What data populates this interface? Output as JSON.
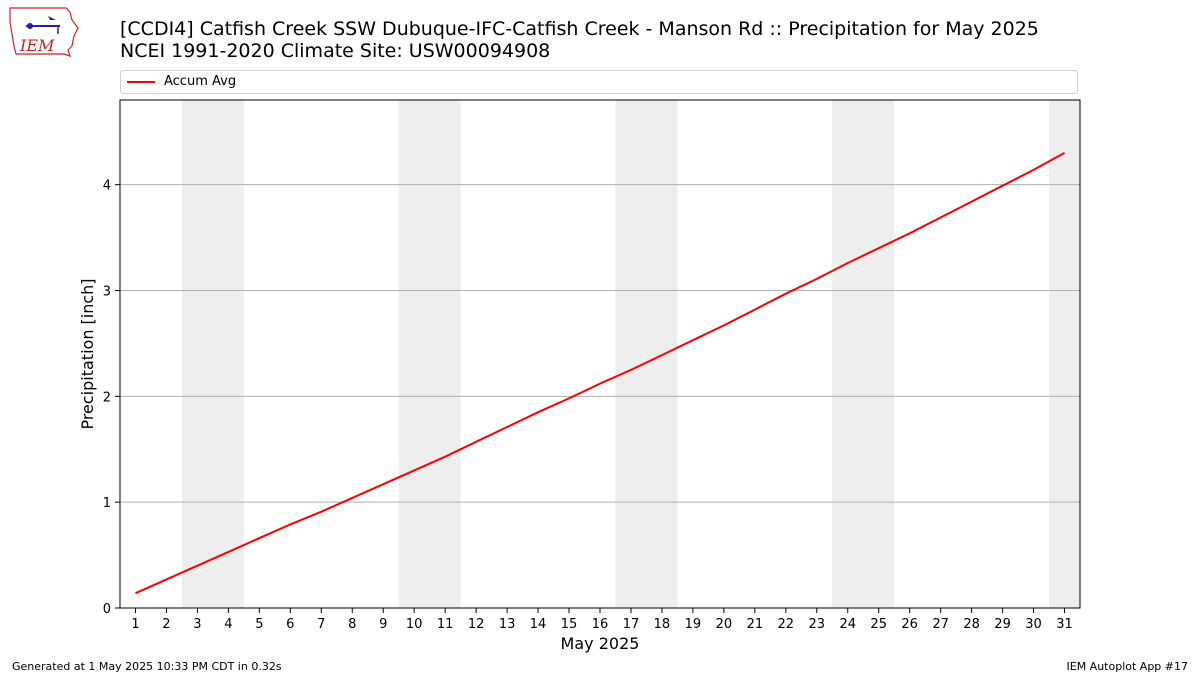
{
  "header": {
    "logo_text": "IEM",
    "title_line1": "[CCDI4] Catfish Creek  SSW Dubuque-IFC-Catfish Creek - Manson Rd :: Precipitation for May 2025",
    "title_line2": "NCEI 1991-2020 Climate Site: USW00094908"
  },
  "legend": {
    "label": "Accum Avg",
    "color": "#ff0000"
  },
  "footer": {
    "left": "Generated at 1 May 2025 10:33 PM CDT in 0.32s",
    "right": "IEM Autoplot App #17"
  },
  "chart_data": {
    "type": "line",
    "xlabel": "May 2025",
    "ylabel": "Precipitation [inch]",
    "xlim": [
      0.5,
      31.5
    ],
    "ylim": [
      0,
      4.8
    ],
    "yticks": [
      0,
      1,
      2,
      3,
      4
    ],
    "xticks": [
      1,
      2,
      3,
      4,
      5,
      6,
      7,
      8,
      9,
      10,
      11,
      12,
      13,
      14,
      15,
      16,
      17,
      18,
      19,
      20,
      21,
      22,
      23,
      24,
      25,
      26,
      27,
      28,
      29,
      30,
      31
    ],
    "grid": "y",
    "weekend_shading": [
      [
        2.5,
        4.5
      ],
      [
        9.5,
        11.5
      ],
      [
        16.5,
        18.5
      ],
      [
        23.5,
        25.5
      ],
      [
        30.5,
        31.5
      ]
    ],
    "shade_color": "#eeeeee",
    "series": [
      {
        "name": "Accum Avg",
        "color": "#ff0000",
        "x": [
          1,
          2,
          3,
          4,
          5,
          6,
          7,
          8,
          9,
          10,
          11,
          12,
          13,
          14,
          15,
          16,
          17,
          18,
          19,
          20,
          21,
          22,
          23,
          24,
          25,
          26,
          27,
          28,
          29,
          30,
          31
        ],
        "values": [
          0.14,
          0.27,
          0.4,
          0.53,
          0.66,
          0.79,
          0.91,
          1.04,
          1.17,
          1.3,
          1.43,
          1.57,
          1.71,
          1.85,
          1.98,
          2.12,
          2.25,
          2.39,
          2.53,
          2.67,
          2.82,
          2.97,
          3.11,
          3.26,
          3.4,
          3.54,
          3.69,
          3.84,
          3.99,
          4.14,
          4.3
        ]
      }
    ]
  }
}
